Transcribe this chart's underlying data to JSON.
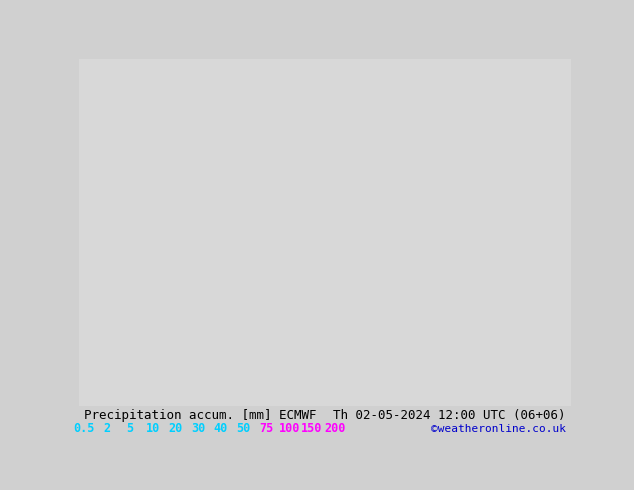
{
  "title_left": "Precipitation accum. [mm] ECMWF",
  "title_right": "Th 02-05-2024 12:00 UTC (06+06)",
  "credit": "©weatheronline.co.uk",
  "legend_values": [
    "0.5",
    "2",
    "5",
    "10",
    "20",
    "30",
    "40",
    "50",
    "75",
    "100",
    "150",
    "200"
  ],
  "legend_colors": [
    "#00cfff",
    "#00cfff",
    "#00cfff",
    "#00cfff",
    "#00cfff",
    "#00cfff",
    "#00cfff",
    "#00cfff",
    "#ff00ff",
    "#ff00ff",
    "#ff00ff",
    "#ff00ff"
  ],
  "bg_color": "#d0d0d0",
  "map_bg": "#d0d0d0",
  "title_color": "#000000",
  "title_fontsize": 9,
  "credit_color": "#0000cc",
  "credit_fontsize": 8
}
